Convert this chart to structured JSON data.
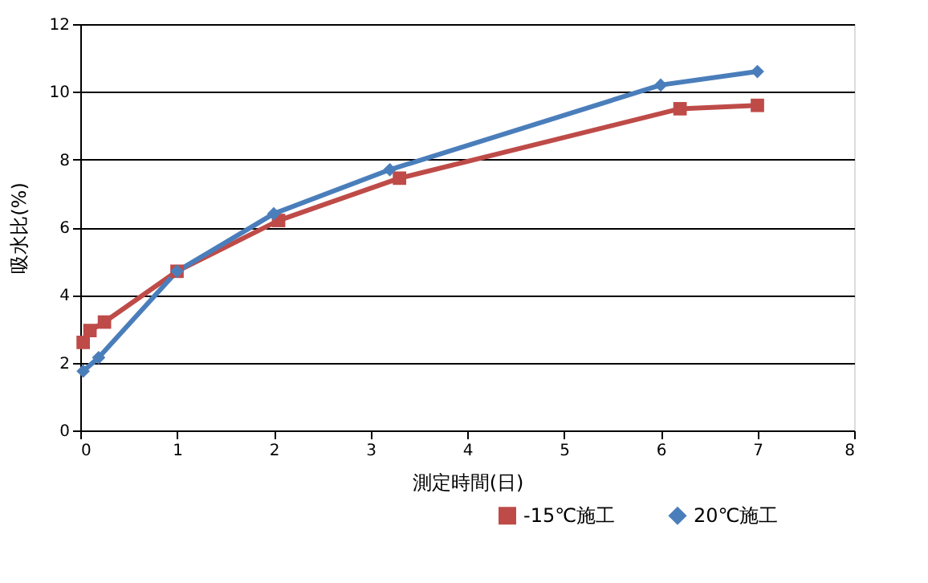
{
  "chart_data": {
    "type": "line",
    "xlabel": "測定時間(日)",
    "ylabel": "吸水比(%)",
    "xlim": [
      0,
      8
    ],
    "xticks": [
      0,
      1,
      2,
      3,
      4,
      5,
      6,
      7,
      8
    ],
    "ylim": [
      0,
      12
    ],
    "yticks": [
      0,
      2,
      4,
      6,
      8,
      10,
      12
    ],
    "grid": "y",
    "legend": "bottom right",
    "series": [
      {
        "name": "-15℃施工",
        "color": "#be4b48",
        "marker": "square",
        "x": [
          0.03,
          0.1,
          0.25,
          1.0,
          2.05,
          3.3,
          6.2,
          7.0
        ],
        "values": [
          2.6,
          2.95,
          3.2,
          4.7,
          6.2,
          7.45,
          9.5,
          9.6
        ]
      },
      {
        "name": "20℃施工",
        "color": "#4a7ebb",
        "marker": "diamond",
        "x": [
          0.03,
          0.19,
          1.0,
          2.0,
          3.2,
          6.0,
          7.0
        ],
        "values": [
          1.75,
          2.15,
          4.7,
          6.4,
          7.7,
          10.2,
          10.6
        ]
      }
    ]
  }
}
